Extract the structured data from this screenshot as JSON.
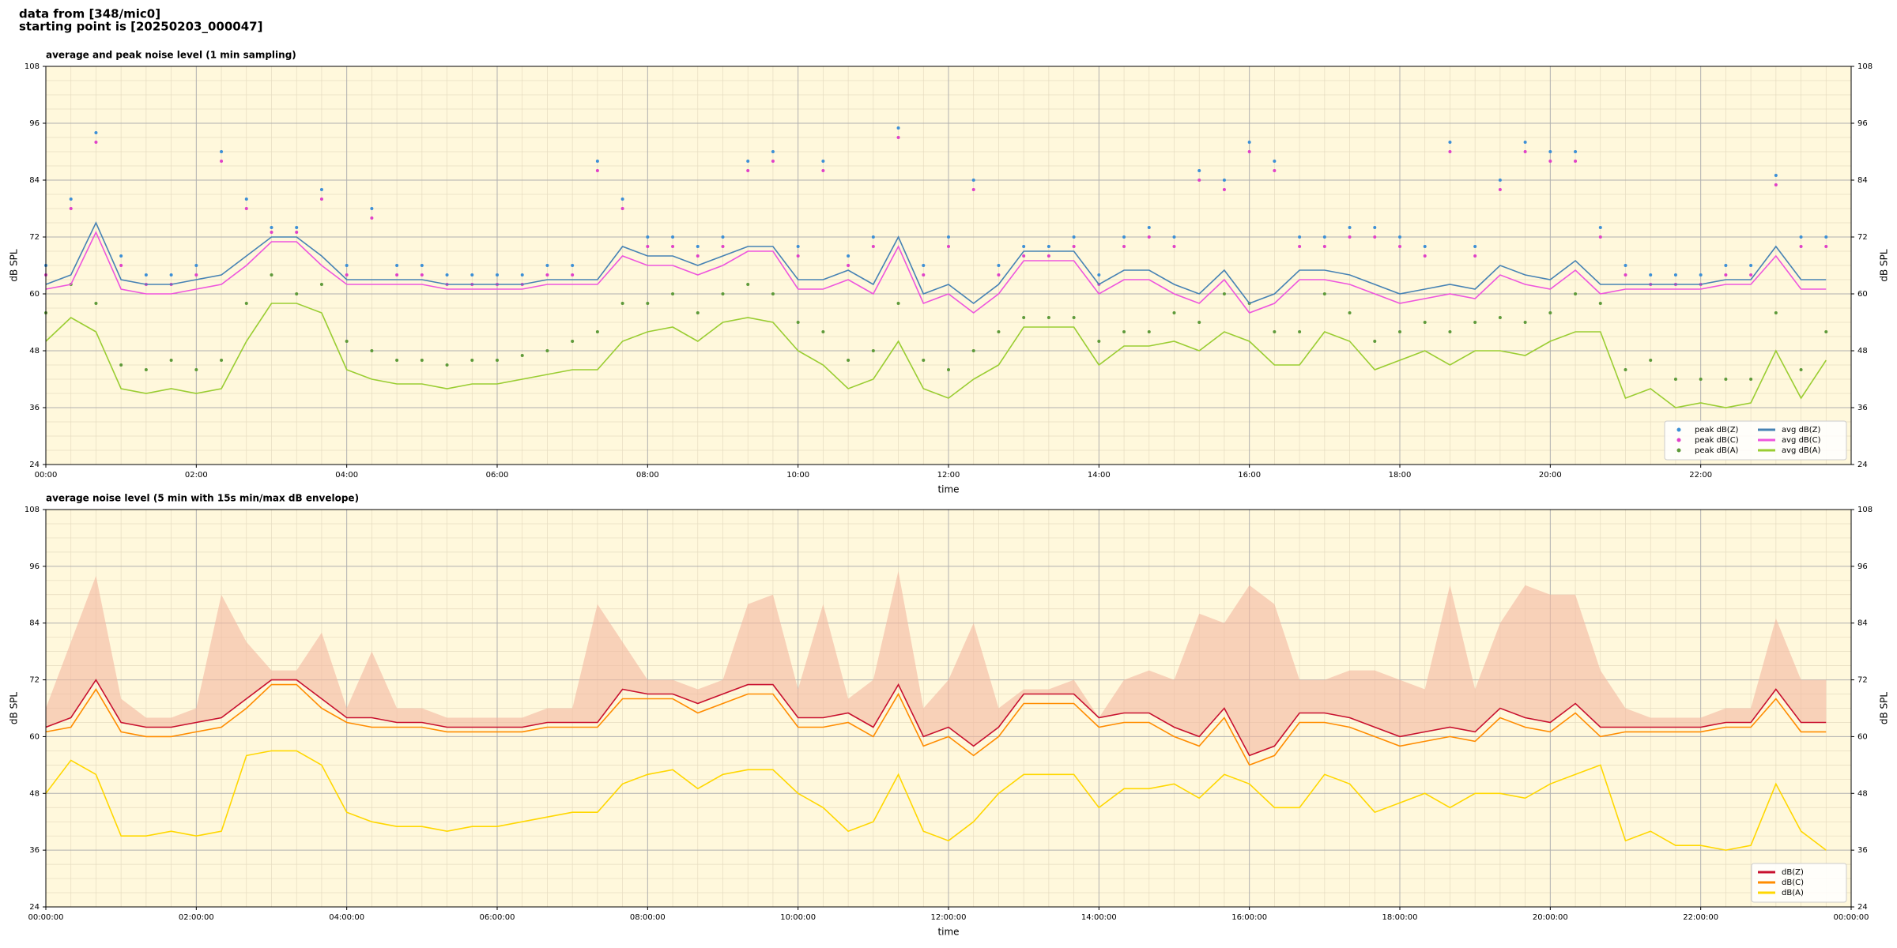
{
  "header": {
    "line1": "data from [348/mic0]",
    "line2": "starting point is [20250203_000047]"
  },
  "chart_data": [
    {
      "type": "line",
      "title": "average and peak noise level (1 min sampling)",
      "xlabel": "time",
      "ylabel": "dB SPL",
      "xlim": [
        0,
        1440
      ],
      "ylim": [
        24,
        108
      ],
      "yticks": [
        24,
        36,
        48,
        60,
        72,
        84,
        96,
        108
      ],
      "xticks": [
        {
          "value": 0,
          "label": "00:00"
        },
        {
          "value": 120,
          "label": "02:00"
        },
        {
          "value": 240,
          "label": "04:00"
        },
        {
          "value": 360,
          "label": "06:00"
        },
        {
          "value": 480,
          "label": "08:00"
        },
        {
          "value": 600,
          "label": "10:00"
        },
        {
          "value": 720,
          "label": "12:00"
        },
        {
          "value": 840,
          "label": "14:00"
        },
        {
          "value": 960,
          "label": "16:00"
        },
        {
          "value": 1080,
          "label": "18:00"
        },
        {
          "value": 1200,
          "label": "20:00"
        },
        {
          "value": 1320,
          "label": "22:00"
        }
      ],
      "grid": true,
      "legend": "lower right",
      "legend_columns": 2,
      "x": [
        0,
        20,
        40,
        60,
        80,
        100,
        120,
        140,
        160,
        180,
        200,
        220,
        240,
        260,
        280,
        300,
        320,
        340,
        360,
        380,
        400,
        420,
        440,
        460,
        480,
        500,
        520,
        540,
        560,
        580,
        600,
        620,
        640,
        660,
        680,
        700,
        720,
        740,
        760,
        780,
        800,
        820,
        840,
        860,
        880,
        900,
        920,
        940,
        960,
        980,
        1000,
        1020,
        1040,
        1060,
        1080,
        1100,
        1120,
        1140,
        1160,
        1180,
        1200,
        1220,
        1240,
        1260,
        1280,
        1300,
        1320,
        1340,
        1360,
        1380,
        1400,
        1420
      ],
      "series": [
        {
          "name": "peak dB(Z)",
          "color": "#3c8fd6",
          "markers_only": true,
          "values": [
            66,
            80,
            94,
            68,
            64,
            64,
            66,
            90,
            80,
            74,
            74,
            82,
            66,
            78,
            66,
            66,
            64,
            64,
            64,
            64,
            66,
            66,
            88,
            80,
            72,
            72,
            70,
            72,
            88,
            90,
            70,
            88,
            68,
            72,
            95,
            66,
            72,
            84,
            66,
            70,
            70,
            72,
            64,
            72,
            74,
            72,
            86,
            84,
            92,
            88,
            72,
            72,
            74,
            74,
            72,
            70,
            92,
            70,
            84,
            92,
            90,
            90,
            74,
            66,
            64,
            64,
            64,
            66,
            66,
            85,
            72,
            72
          ]
        },
        {
          "name": "peak dB(C)",
          "color": "#e040c8",
          "markers_only": true,
          "values": [
            64,
            78,
            92,
            66,
            62,
            62,
            64,
            88,
            78,
            73,
            73,
            80,
            64,
            76,
            64,
            64,
            62,
            62,
            62,
            62,
            64,
            64,
            86,
            78,
            70,
            70,
            68,
            70,
            86,
            88,
            68,
            86,
            66,
            70,
            93,
            64,
            70,
            82,
            64,
            68,
            68,
            70,
            62,
            70,
            72,
            70,
            84,
            82,
            90,
            86,
            70,
            70,
            72,
            72,
            70,
            68,
            90,
            68,
            82,
            90,
            88,
            88,
            72,
            64,
            62,
            62,
            62,
            64,
            64,
            83,
            70,
            70
          ]
        },
        {
          "name": "peak dB(A)",
          "color": "#5e9a3a",
          "markers_only": true,
          "values": [
            56,
            62,
            58,
            45,
            44,
            46,
            44,
            46,
            58,
            64,
            60,
            62,
            50,
            48,
            46,
            46,
            45,
            46,
            46,
            47,
            48,
            50,
            52,
            58,
            58,
            60,
            56,
            60,
            62,
            60,
            54,
            52,
            46,
            48,
            58,
            46,
            44,
            48,
            52,
            55,
            55,
            55,
            50,
            52,
            52,
            56,
            54,
            60,
            58,
            52,
            52,
            60,
            56,
            50,
            52,
            54,
            52,
            54,
            55,
            54,
            56,
            60,
            58,
            44,
            46,
            42,
            42,
            42,
            42,
            56,
            44,
            52
          ]
        },
        {
          "name": "avg dB(Z)",
          "color": "#4682b4",
          "values": [
            62,
            64,
            75,
            63,
            62,
            62,
            63,
            64,
            68,
            72,
            72,
            68,
            63,
            63,
            63,
            63,
            62,
            62,
            62,
            62,
            63,
            63,
            63,
            70,
            68,
            68,
            66,
            68,
            70,
            70,
            63,
            63,
            65,
            62,
            72,
            60,
            62,
            58,
            62,
            69,
            69,
            69,
            62,
            65,
            65,
            62,
            60,
            65,
            58,
            60,
            65,
            65,
            64,
            62,
            60,
            61,
            62,
            61,
            66,
            64,
            63,
            67,
            62,
            62,
            62,
            62,
            62,
            63,
            63,
            70,
            63,
            63
          ]
        },
        {
          "name": "avg dB(C)",
          "color": "#ee55dd",
          "values": [
            61,
            62,
            73,
            61,
            60,
            60,
            61,
            62,
            66,
            71,
            71,
            66,
            62,
            62,
            62,
            62,
            61,
            61,
            61,
            61,
            62,
            62,
            62,
            68,
            66,
            66,
            64,
            66,
            69,
            69,
            61,
            61,
            63,
            60,
            70,
            58,
            60,
            56,
            60,
            67,
            67,
            67,
            60,
            63,
            63,
            60,
            58,
            63,
            56,
            58,
            63,
            63,
            62,
            60,
            58,
            59,
            60,
            59,
            64,
            62,
            61,
            65,
            60,
            61,
            61,
            61,
            61,
            62,
            62,
            68,
            61,
            61
          ]
        },
        {
          "name": "avg dB(A)",
          "color": "#9acd32",
          "values": [
            50,
            55,
            52,
            40,
            39,
            40,
            39,
            40,
            50,
            58,
            58,
            56,
            44,
            42,
            41,
            41,
            40,
            41,
            41,
            42,
            43,
            44,
            44,
            50,
            52,
            53,
            50,
            54,
            55,
            54,
            48,
            45,
            40,
            42,
            50,
            40,
            38,
            42,
            45,
            53,
            53,
            53,
            45,
            49,
            49,
            50,
            48,
            52,
            50,
            45,
            45,
            52,
            50,
            44,
            46,
            48,
            45,
            48,
            48,
            47,
            50,
            52,
            52,
            38,
            40,
            36,
            37,
            36,
            37,
            48,
            38,
            46
          ]
        }
      ]
    },
    {
      "type": "line",
      "title": "average noise level (5 min with 15s min/max dB envelope)",
      "xlabel": "time",
      "ylabel": "dB SPL",
      "xlim": [
        0,
        1440
      ],
      "ylim": [
        24,
        108
      ],
      "yticks": [
        24,
        36,
        48,
        60,
        72,
        84,
        96,
        108
      ],
      "xticks": [
        {
          "value": 0,
          "label": "00:00:00"
        },
        {
          "value": 120,
          "label": "02:00:00"
        },
        {
          "value": 240,
          "label": "04:00:00"
        },
        {
          "value": 360,
          "label": "06:00:00"
        },
        {
          "value": 480,
          "label": "08:00:00"
        },
        {
          "value": 600,
          "label": "10:00:00"
        },
        {
          "value": 720,
          "label": "12:00:00"
        },
        {
          "value": 840,
          "label": "14:00:00"
        },
        {
          "value": 960,
          "label": "16:00:00"
        },
        {
          "value": 1080,
          "label": "18:00:00"
        },
        {
          "value": 1200,
          "label": "20:00:00"
        },
        {
          "value": 1320,
          "label": "22:00:00"
        },
        {
          "value": 1440,
          "label": "00:00:00"
        }
      ],
      "grid": true,
      "legend": "lower right",
      "legend_columns": 1,
      "x": [
        0,
        20,
        40,
        60,
        80,
        100,
        120,
        140,
        160,
        180,
        200,
        220,
        240,
        260,
        280,
        300,
        320,
        340,
        360,
        380,
        400,
        420,
        440,
        460,
        480,
        500,
        520,
        540,
        560,
        580,
        600,
        620,
        640,
        660,
        680,
        700,
        720,
        740,
        760,
        780,
        800,
        820,
        840,
        860,
        880,
        900,
        920,
        940,
        960,
        980,
        1000,
        1020,
        1040,
        1060,
        1080,
        1100,
        1120,
        1140,
        1160,
        1180,
        1200,
        1220,
        1240,
        1260,
        1280,
        1300,
        1320,
        1340,
        1360,
        1380,
        1400,
        1420
      ],
      "series": [
        {
          "name": "dB(Z)",
          "color": "#c8102e",
          "envelope_color": "#f4b8a0",
          "envelope_max": [
            66,
            80,
            94,
            68,
            64,
            64,
            66,
            90,
            80,
            74,
            74,
            82,
            66,
            78,
            66,
            66,
            64,
            64,
            64,
            64,
            66,
            66,
            88,
            80,
            72,
            72,
            70,
            72,
            88,
            90,
            70,
            88,
            68,
            72,
            95,
            66,
            72,
            84,
            66,
            70,
            70,
            72,
            64,
            72,
            74,
            72,
            86,
            84,
            92,
            88,
            72,
            72,
            74,
            74,
            72,
            70,
            92,
            70,
            84,
            92,
            90,
            90,
            74,
            66,
            64,
            64,
            64,
            66,
            66,
            85,
            72,
            72
          ],
          "values": [
            62,
            64,
            72,
            63,
            62,
            62,
            63,
            64,
            68,
            72,
            72,
            68,
            64,
            64,
            63,
            63,
            62,
            62,
            62,
            62,
            63,
            63,
            63,
            70,
            69,
            69,
            67,
            69,
            71,
            71,
            64,
            64,
            65,
            62,
            71,
            60,
            62,
            58,
            62,
            69,
            69,
            69,
            64,
            65,
            65,
            62,
            60,
            66,
            56,
            58,
            65,
            65,
            64,
            62,
            60,
            61,
            62,
            61,
            66,
            64,
            63,
            67,
            62,
            62,
            62,
            62,
            62,
            63,
            63,
            70,
            63,
            63
          ]
        },
        {
          "name": "dB(C)",
          "color": "#ff8c00",
          "values": [
            61,
            62,
            70,
            61,
            60,
            60,
            61,
            62,
            66,
            71,
            71,
            66,
            63,
            62,
            62,
            62,
            61,
            61,
            61,
            61,
            62,
            62,
            62,
            68,
            68,
            68,
            65,
            67,
            69,
            69,
            62,
            62,
            63,
            60,
            69,
            58,
            60,
            56,
            60,
            67,
            67,
            67,
            62,
            63,
            63,
            60,
            58,
            64,
            54,
            56,
            63,
            63,
            62,
            60,
            58,
            59,
            60,
            59,
            64,
            62,
            61,
            65,
            60,
            61,
            61,
            61,
            61,
            62,
            62,
            68,
            61,
            61
          ]
        },
        {
          "name": "dB(A)",
          "color": "#ffd700",
          "values": [
            48,
            55,
            52,
            39,
            39,
            40,
            39,
            40,
            56,
            57,
            57,
            54,
            44,
            42,
            41,
            41,
            40,
            41,
            41,
            42,
            43,
            44,
            44,
            50,
            52,
            53,
            49,
            52,
            53,
            53,
            48,
            45,
            40,
            42,
            52,
            40,
            38,
            42,
            48,
            52,
            52,
            52,
            45,
            49,
            49,
            50,
            47,
            52,
            50,
            45,
            45,
            52,
            50,
            44,
            46,
            48,
            45,
            48,
            48,
            47,
            50,
            52,
            54,
            38,
            40,
            37,
            37,
            36,
            37,
            50,
            40,
            36
          ]
        }
      ]
    }
  ]
}
